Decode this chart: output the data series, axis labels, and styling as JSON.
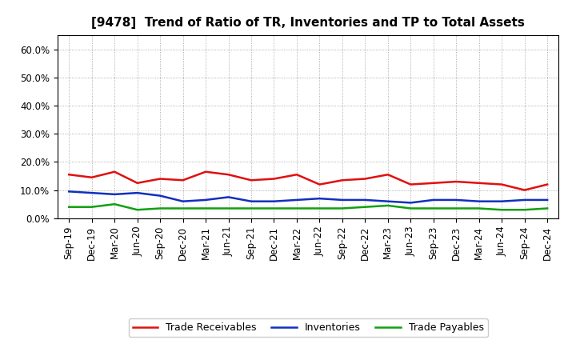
{
  "title": "[9478]  Trend of Ratio of TR, Inventories and TP to Total Assets",
  "x_labels": [
    "Sep-19",
    "Dec-19",
    "Mar-20",
    "Jun-20",
    "Sep-20",
    "Dec-20",
    "Mar-21",
    "Jun-21",
    "Sep-21",
    "Dec-21",
    "Mar-22",
    "Jun-22",
    "Sep-22",
    "Dec-22",
    "Mar-23",
    "Jun-23",
    "Sep-23",
    "Dec-23",
    "Mar-24",
    "Jun-24",
    "Sep-24",
    "Dec-24"
  ],
  "trade_receivables": [
    0.155,
    0.145,
    0.165,
    0.125,
    0.14,
    0.135,
    0.165,
    0.155,
    0.135,
    0.14,
    0.155,
    0.12,
    0.135,
    0.14,
    0.155,
    0.12,
    0.125,
    0.13,
    0.125,
    0.12,
    0.1,
    0.12
  ],
  "inventories": [
    0.095,
    0.09,
    0.085,
    0.09,
    0.08,
    0.06,
    0.065,
    0.075,
    0.06,
    0.06,
    0.065,
    0.07,
    0.065,
    0.065,
    0.06,
    0.055,
    0.065,
    0.065,
    0.06,
    0.06,
    0.065,
    0.065
  ],
  "trade_payables": [
    0.04,
    0.04,
    0.05,
    0.03,
    0.035,
    0.035,
    0.035,
    0.035,
    0.035,
    0.035,
    0.035,
    0.035,
    0.035,
    0.04,
    0.045,
    0.035,
    0.035,
    0.035,
    0.035,
    0.03,
    0.03,
    0.035
  ],
  "tr_color": "#e01010",
  "inv_color": "#1030c0",
  "tp_color": "#10a010",
  "ylim": [
    0.0,
    0.65
  ],
  "yticks": [
    0.0,
    0.1,
    0.2,
    0.3,
    0.4,
    0.5,
    0.6
  ],
  "legend_tr": "Trade Receivables",
  "legend_inv": "Inventories",
  "legend_tp": "Trade Payables",
  "bg_color": "#ffffff",
  "grid_color": "#999999",
  "line_width": 1.8,
  "title_fontsize": 11,
  "tick_fontsize": 8.5,
  "legend_fontsize": 9
}
